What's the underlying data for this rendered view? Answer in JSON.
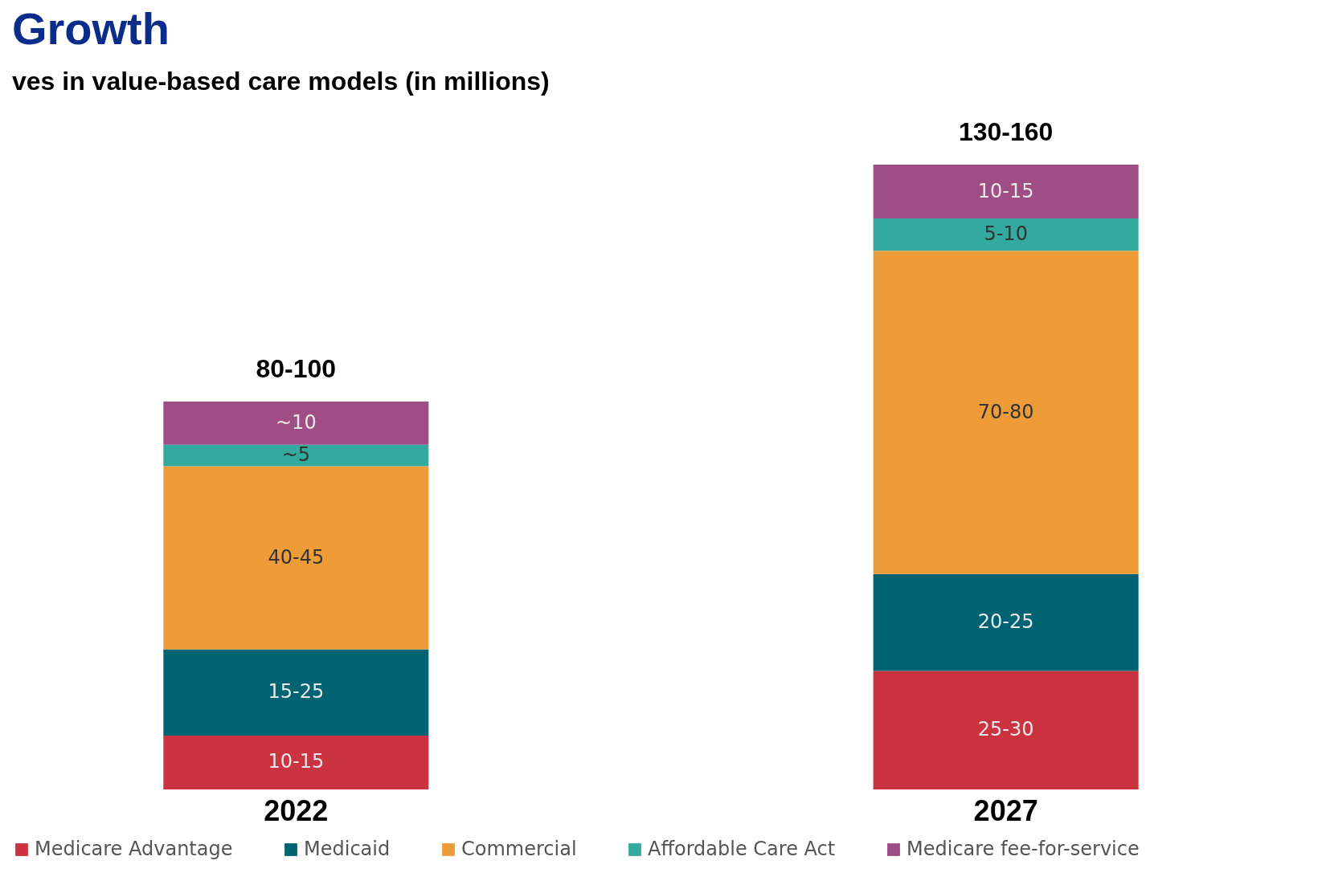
{
  "chart_data": {
    "type": "bar",
    "title": "Growth",
    "subtitle": "ves in value-based care models (in millions)",
    "categories": [
      "2022",
      "2027"
    ],
    "stacked": true,
    "legend": "bottom",
    "series": [
      {
        "name": "Medicare Advantage",
        "color": "#cc3340",
        "values": [
          12.5,
          27.5
        ],
        "value_labels": [
          "10-15",
          "25-30"
        ]
      },
      {
        "name": "Medicaid",
        "color": "#006373",
        "values": [
          20,
          22.5
        ],
        "value_labels": [
          "15-25",
          "20-25"
        ]
      },
      {
        "name": "Commercial",
        "color": "#ee9c38",
        "values": [
          42.5,
          75
        ],
        "value_labels": [
          "40-45",
          "70-80"
        ]
      },
      {
        "name": "Affordable Care Act",
        "color": "#33a99f",
        "values": [
          5,
          7.5
        ],
        "value_labels": [
          "~5",
          "5-10"
        ]
      },
      {
        "name": "Medicare fee-for-service",
        "color": "#9e4d85",
        "values": [
          10,
          12.5
        ],
        "value_labels": [
          "~10",
          "10-15"
        ]
      }
    ],
    "totals": [
      "80-100",
      "130-160"
    ]
  }
}
